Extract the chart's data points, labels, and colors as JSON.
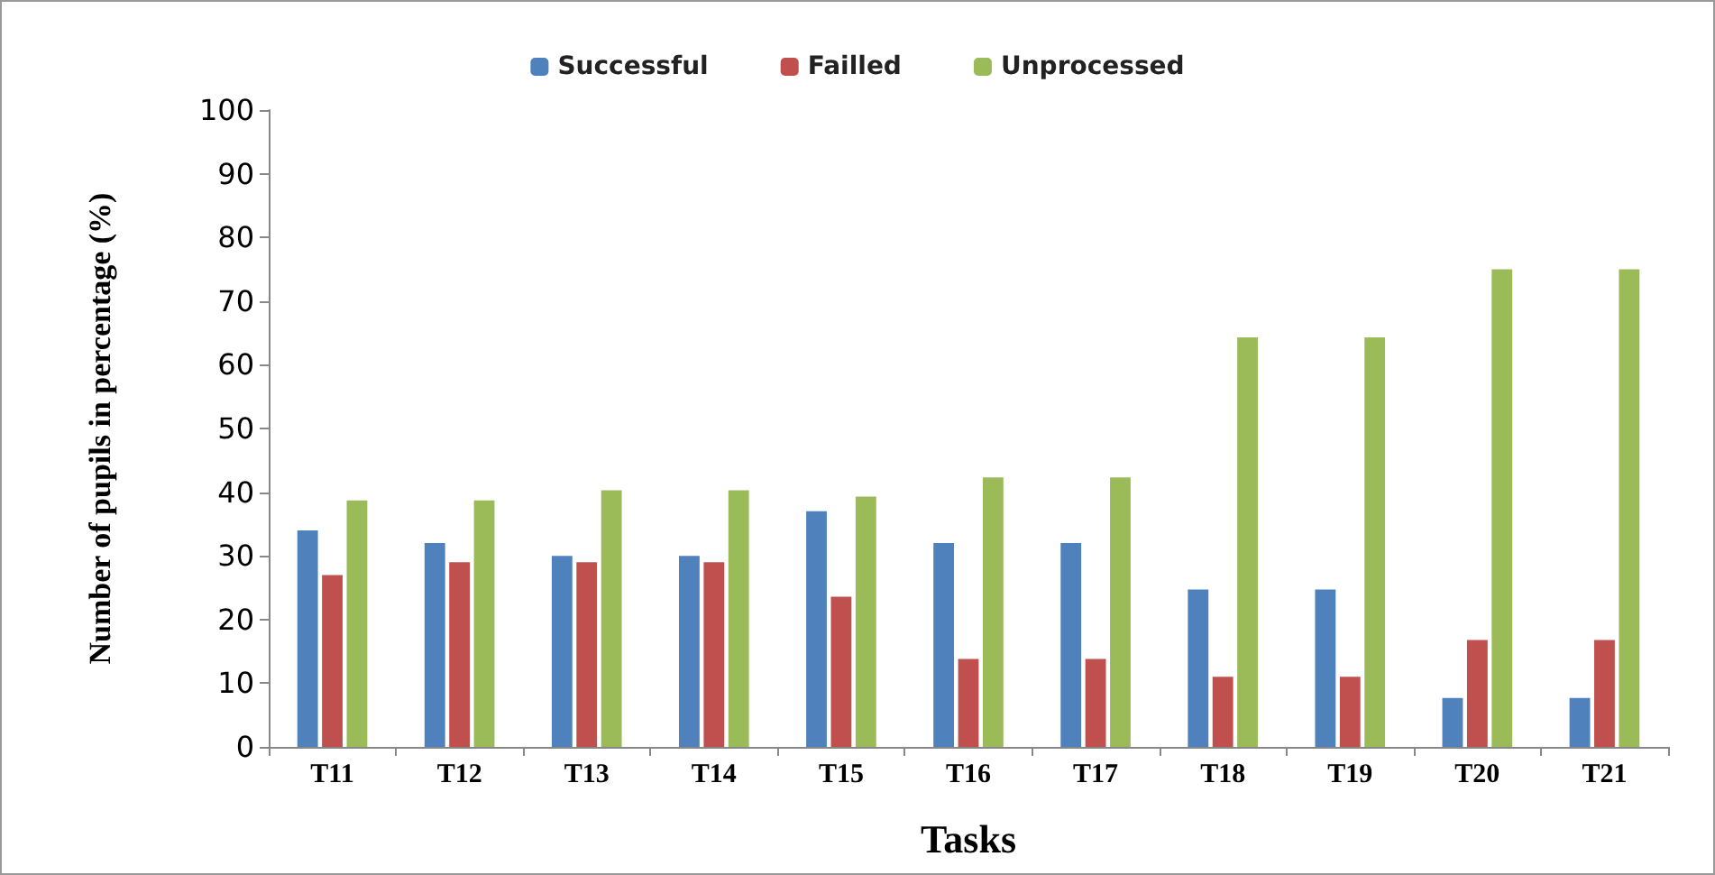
{
  "chart_data": {
    "type": "bar",
    "xlabel": "Tasks",
    "ylabel": "Number of pupils in percentage (%)",
    "categories": [
      "T11",
      "T12",
      "T13",
      "T14",
      "T15",
      "T16",
      "T17",
      "T18",
      "T19",
      "T20",
      "T21"
    ],
    "series": [
      {
        "name": "Successful",
        "color": "#4f81bd",
        "values": [
          34,
          32,
          30,
          30,
          37,
          32,
          32,
          24.7,
          24.7,
          7.7,
          7.7
        ]
      },
      {
        "name": "Failled",
        "color": "#c0504d",
        "values": [
          27,
          29,
          29,
          29,
          23.6,
          13.8,
          13.8,
          11,
          11,
          16.8,
          16.8
        ]
      },
      {
        "name": "Unprocessed",
        "color": "#9bbb59",
        "values": [
          38.7,
          38.7,
          40.3,
          40.3,
          39.3,
          42.3,
          42.3,
          64.3,
          64.3,
          75,
          75
        ]
      }
    ],
    "ylim": [
      0,
      100
    ],
    "yticks": [
      0,
      10,
      20,
      30,
      40,
      50,
      60,
      70,
      80,
      90,
      100
    ],
    "grid": false,
    "legend": "top"
  }
}
